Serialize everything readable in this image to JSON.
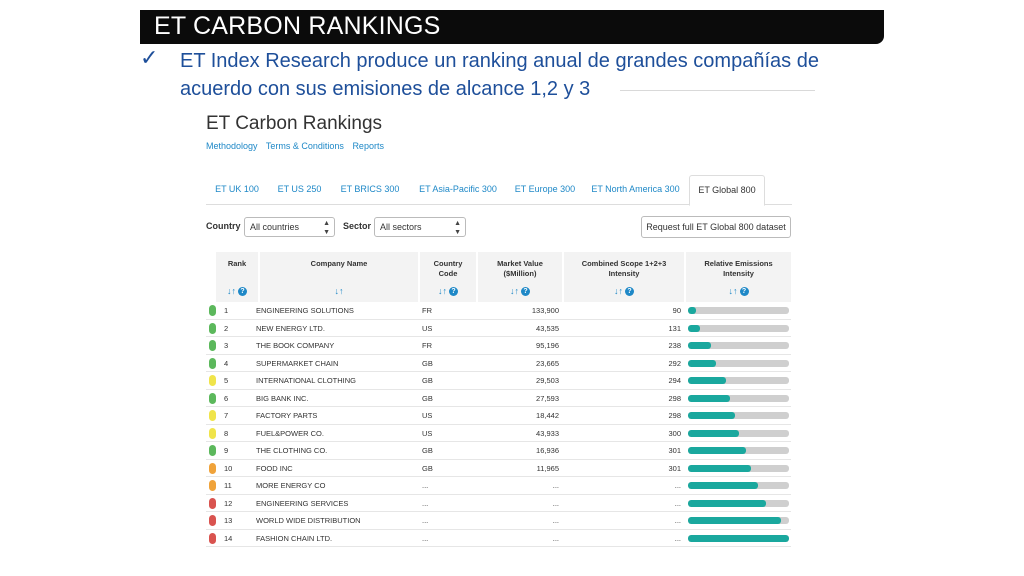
{
  "slide": {
    "title": "ET CARBON RANKINGS",
    "check": "✓",
    "bullet": "ET Index Research produce un ranking anual de grandes compañías de acuerdo con sus emisiones de alcance 1,2 y 3"
  },
  "page": {
    "title": "ET Carbon Rankings",
    "links": [
      "Methodology",
      "Terms & Conditions",
      "Reports"
    ],
    "tabs": [
      "ET UK 100",
      "ET US 250",
      "ET BRICS 300",
      "ET Asia-Pacific 300",
      "ET Europe 300",
      "ET North America 300",
      "ET Global 800"
    ],
    "active_tab": "ET Global 800",
    "filters": {
      "country_label": "Country",
      "country_value": "All countries",
      "sector_label": "Sector",
      "sector_value": "All sectors",
      "request_button": "Request full ET Global 800 dataset"
    }
  },
  "table": {
    "headers": {
      "rank": "Rank",
      "company": "Company Name",
      "country_1": "Country",
      "country_2": "Code",
      "market_1": "Market Value",
      "market_2": "($Million)",
      "scope_1": "Combined Scope 1+2+3",
      "scope_2": "Intensity",
      "relative_1": "Relative Emissions",
      "relative_2": "Intensity"
    },
    "sort_glyph": "↓↑",
    "help_glyph": "?",
    "rows": [
      {
        "status": "#5cb85c",
        "rank": "1",
        "name": "ENGINEERING SOLUTIONS",
        "code": "FR",
        "market": "133,900",
        "scope": "90",
        "relative": 0.08
      },
      {
        "status": "#5cb85c",
        "rank": "2",
        "name": "NEW ENERGY LTD.",
        "code": "US",
        "market": "43,535",
        "scope": "131",
        "relative": 0.12
      },
      {
        "status": "#5cb85c",
        "rank": "3",
        "name": "THE BOOK COMPANY",
        "code": "FR",
        "market": "95,196",
        "scope": "238",
        "relative": 0.23
      },
      {
        "status": "#5cb85c",
        "rank": "4",
        "name": "SUPERMARKET CHAIN",
        "code": "GB",
        "market": "23,665",
        "scope": "292",
        "relative": 0.28
      },
      {
        "status": "#f0e44a",
        "rank": "5",
        "name": "INTERNATIONAL CLOTHING",
        "code": "GB",
        "market": "29,503",
        "scope": "294",
        "relative": 0.38
      },
      {
        "status": "#5cb85c",
        "rank": "6",
        "name": "BIG BANK INC.",
        "code": "GB",
        "market": "27,593",
        "scope": "298",
        "relative": 0.42
      },
      {
        "status": "#f0e44a",
        "rank": "7",
        "name": "FACTORY PARTS",
        "code": "US",
        "market": "18,442",
        "scope": "298",
        "relative": 0.47
      },
      {
        "status": "#f0e44a",
        "rank": "8",
        "name": "FUEL&POWER CO.",
        "code": "US",
        "market": "43,933",
        "scope": "300",
        "relative": 0.5
      },
      {
        "status": "#5cb85c",
        "rank": "9",
        "name": "THE CLOTHING CO.",
        "code": "GB",
        "market": "16,936",
        "scope": "301",
        "relative": 0.57
      },
      {
        "status": "#f0a33a",
        "rank": "10",
        "name": "FOOD INC",
        "code": "GB",
        "market": "11,965",
        "scope": "301",
        "relative": 0.62
      },
      {
        "status": "#f0a33a",
        "rank": "11",
        "name": "MORE ENERGY CO",
        "code": "...",
        "market": "...",
        "scope": "...",
        "relative": 0.69
      },
      {
        "status": "#d9534f",
        "rank": "12",
        "name": "ENGINEERING SERVICES",
        "code": "...",
        "market": "...",
        "scope": "...",
        "relative": 0.77
      },
      {
        "status": "#d9534f",
        "rank": "13",
        "name": "WORLD WIDE DISTRIBUTION",
        "code": "...",
        "market": "...",
        "scope": "...",
        "relative": 0.92
      },
      {
        "status": "#d9534f",
        "rank": "14",
        "name": "FASHION CHAIN LTD.",
        "code": "...",
        "market": "...",
        "scope": "...",
        "relative": 1.0
      }
    ]
  },
  "colors": {
    "accent": "#1e88c7",
    "bar": "#1aa89e",
    "heading_blue": "#1e4f9a"
  }
}
